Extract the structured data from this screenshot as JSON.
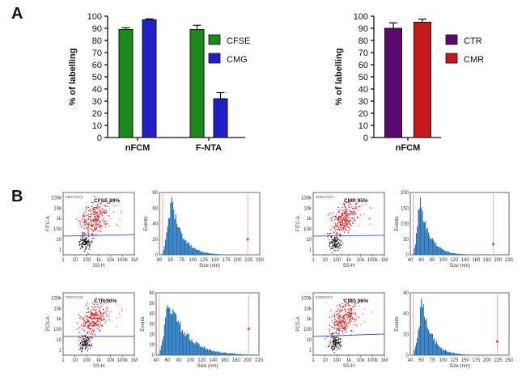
{
  "panels": {
    "a": "A",
    "b": "B"
  },
  "chart_data": [
    {
      "type": "bar",
      "panel": "A-left",
      "categories": [
        "nFCM",
        "F-NTA"
      ],
      "series": [
        {
          "name": "CFSE",
          "color": "#1a8a1a",
          "values": [
            89,
            89
          ],
          "errors": [
            1.5,
            3.5
          ]
        },
        {
          "name": "CMG",
          "color": "#2020c8",
          "values": [
            97,
            32
          ],
          "errors": [
            0.8,
            5
          ]
        }
      ],
      "ylabel": "% of labelling",
      "ylim": [
        0,
        100
      ],
      "yticks": [
        0,
        10,
        20,
        30,
        40,
        50,
        60,
        70,
        80,
        90,
        100
      ],
      "legend": "right"
    },
    {
      "type": "bar",
      "panel": "A-right",
      "categories": [
        "nFCM"
      ],
      "series": [
        {
          "name": "CTR",
          "color": "#5a0a6e",
          "values": [
            90
          ],
          "errors": [
            4.5
          ]
        },
        {
          "name": "CMR",
          "color": "#c41a1a",
          "values": [
            95
          ],
          "errors": [
            2.5
          ]
        }
      ],
      "ylabel": "% of labelling",
      "ylim": [
        0,
        100
      ],
      "yticks": [
        0,
        10,
        20,
        30,
        40,
        50,
        60,
        70,
        80,
        90,
        100
      ],
      "legend": "right"
    },
    {
      "type": "scatter",
      "panel": "B-CFSE-dot",
      "annotation": "CFSE 89%",
      "sample_id": "FB2170V3",
      "ylabel": "FITC-A",
      "xlabel": "SS-H",
      "scale": "log",
      "xticks": [
        "1",
        "10",
        "100",
        "1k",
        "10k",
        "100k",
        "1M"
      ],
      "yticks": [
        "1",
        "10",
        "100",
        "1k",
        "10k",
        "100k"
      ]
    },
    {
      "type": "histogram",
      "panel": "B-CFSE-hist",
      "xlabel": "Size (nm)",
      "ylabel": "Events",
      "xticks": [
        "40",
        "50",
        "75",
        "100",
        "125",
        "150",
        "175",
        "200",
        "225",
        "250"
      ],
      "yticks": [
        "0",
        "20",
        "40",
        "60",
        "80"
      ],
      "ylim": [
        0,
        80
      ]
    },
    {
      "type": "scatter",
      "panel": "B-CMR-dot",
      "annotation": "CMR 95%",
      "sample_id": "SM0170V1",
      "ylabel": "FITC-A",
      "xlabel": "SS-H",
      "scale": "log",
      "xticks": [
        "1",
        "10",
        "100",
        "1k",
        "10k",
        "100k",
        "1M"
      ],
      "yticks": [
        "1",
        "10",
        "100",
        "1k",
        "10k",
        "100k"
      ]
    },
    {
      "type": "histogram",
      "panel": "B-CMR-hist",
      "xlabel": "Size (nm)",
      "ylabel": "Events",
      "xticks": [
        "40",
        "60",
        "80",
        "100",
        "120",
        "140",
        "160",
        "180",
        "200",
        "220"
      ],
      "yticks": [
        "0",
        "50",
        "100",
        "150",
        "200"
      ],
      "ylim": [
        0,
        200
      ]
    },
    {
      "type": "scatter",
      "panel": "B-CTR-dot",
      "annotation": "CTR 90%",
      "sample_id": "P5071VS8",
      "ylabel": "PCS-A",
      "xlabel": "SS-H",
      "scale": "log",
      "xticks": [
        "1",
        "10",
        "100",
        "1k",
        "10k",
        "100k",
        "1M"
      ],
      "yticks": [
        "1",
        "10",
        "100",
        "1k",
        "10k",
        "100k"
      ]
    },
    {
      "type": "histogram",
      "panel": "B-CTR-hist",
      "xlabel": "Size (nm)",
      "ylabel": "Events",
      "xticks": [
        "40",
        "60",
        "80",
        "100",
        "120",
        "140",
        "160",
        "180",
        "200",
        "220"
      ],
      "yticks": [
        "0",
        "10",
        "20",
        "30",
        "40",
        "50",
        "60"
      ],
      "ylim": [
        0,
        60
      ]
    },
    {
      "type": "scatter",
      "panel": "B-CMG-dot",
      "annotation": "CMG 96%",
      "sample_id": "E1602V03",
      "ylabel": "PCS-A",
      "xlabel": "SS-H",
      "scale": "log",
      "xticks": [
        "1",
        "10",
        "100",
        "1k",
        "10k",
        "100k",
        "1M"
      ],
      "yticks": [
        "1",
        "10",
        "100",
        "1k",
        "10k",
        "100k"
      ]
    },
    {
      "type": "histogram",
      "panel": "B-CMG-hist",
      "xlabel": "Size (nm)",
      "ylabel": "Events",
      "xticks": [
        "40",
        "50",
        "75",
        "100",
        "125",
        "150",
        "175",
        "200",
        "225",
        "250"
      ],
      "yticks": [
        "0",
        "20",
        "40",
        "60"
      ],
      "ylim": [
        0,
        60
      ]
    }
  ]
}
